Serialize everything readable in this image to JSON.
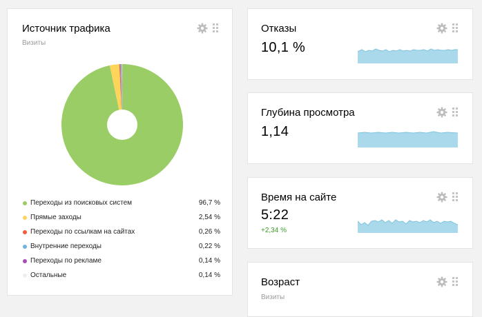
{
  "traffic": {
    "title": "Источник трафика",
    "subtitle": "Визиты",
    "icons": {
      "settings": "gear-icon",
      "drag": "drag-handle-icon"
    },
    "chart_data": {
      "type": "pie",
      "title": "Источник трафика",
      "unit": "%",
      "categories": [
        "Переходы из поисковых систем",
        "Прямые заходы",
        "Переходы по ссылкам на сайтах",
        "Внутренние переходы",
        "Переходы по рекламе",
        "Остальные"
      ],
      "values": [
        96.7,
        2.54,
        0.26,
        0.22,
        0.14,
        0.14
      ],
      "colors": [
        "#9acd66",
        "#ffd45a",
        "#f25c3c",
        "#73b2e1",
        "#a54db5",
        "#efefef"
      ],
      "donut": true,
      "legend_position": "bottom"
    },
    "legend": [
      {
        "label": "Переходы из поисковых систем",
        "value": "96,7 %",
        "color": "#9acd66"
      },
      {
        "label": "Прямые заходы",
        "value": "2,54 %",
        "color": "#ffd45a"
      },
      {
        "label": "Переходы по ссылкам на сайтах",
        "value": "0,26 %",
        "color": "#f25c3c"
      },
      {
        "label": "Внутренние переходы",
        "value": "0,22 %",
        "color": "#73b2e1"
      },
      {
        "label": "Переходы по рекламе",
        "value": "0,14 %",
        "color": "#a54db5"
      },
      {
        "label": "Остальные",
        "value": "0,14 %",
        "color": "#efefef"
      }
    ]
  },
  "bounces": {
    "title": "Отказы",
    "value": "10,1 %"
  },
  "depth": {
    "title": "Глубина просмотра",
    "value": "1,14"
  },
  "time": {
    "title": "Время на сайте",
    "value": "5:22",
    "delta": "+2,34 %"
  },
  "age": {
    "title": "Возраст",
    "subtitle": "Визиты"
  },
  "colors": {
    "spark_fill": "#a9d9ea",
    "spark_line": "#7cc4dd",
    "delta_positive": "#3a9d23"
  }
}
